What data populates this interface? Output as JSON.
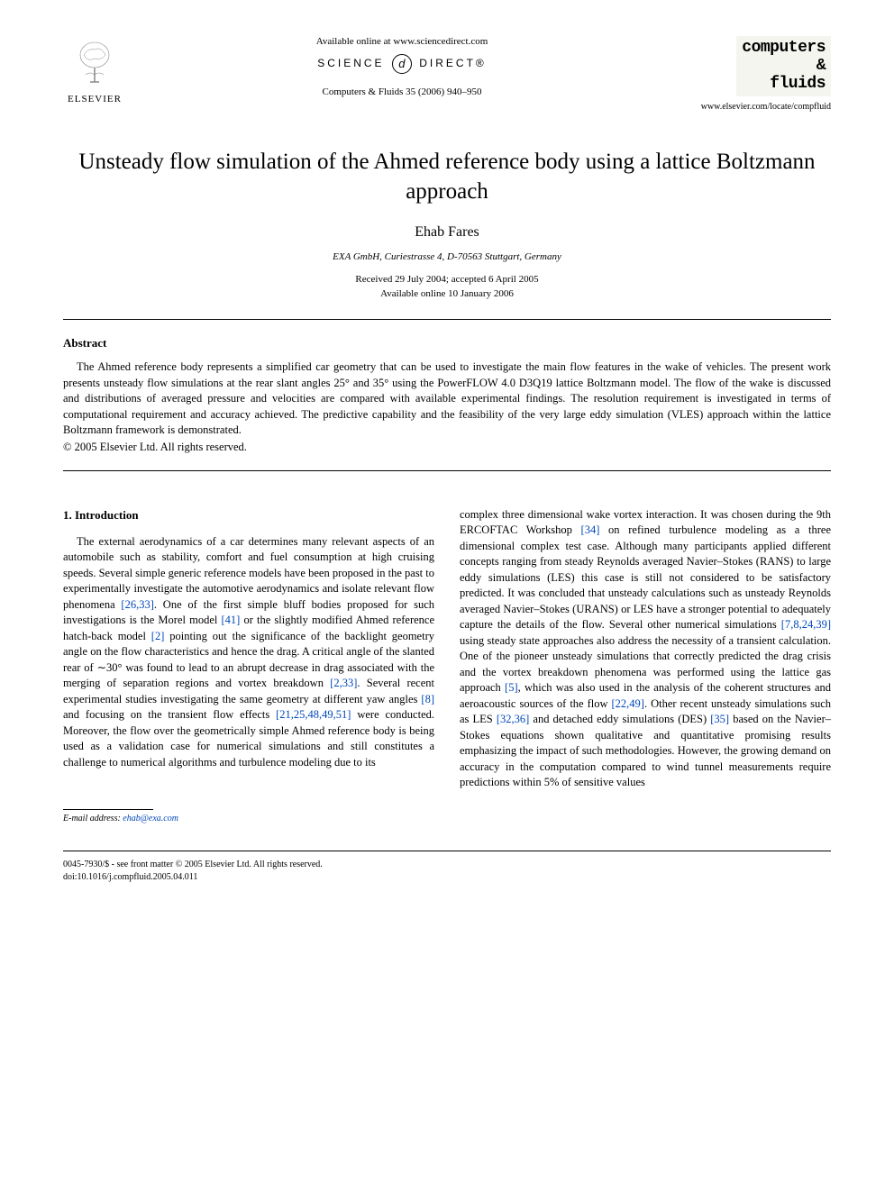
{
  "header": {
    "publisher": "ELSEVIER",
    "available": "Available online at www.sciencedirect.com",
    "sciencedirect_pre": "SCIENCE",
    "sciencedirect_post": "DIRECT®",
    "journal_ref": "Computers & Fluids 35 (2006) 940–950",
    "journal_name_line1": "computers",
    "journal_name_line2": "&",
    "journal_name_line3": "fluids",
    "journal_url": "www.elsevier.com/locate/compfluid"
  },
  "title": "Unsteady flow simulation of the Ahmed reference body using a lattice Boltzmann approach",
  "author": "Ehab Fares",
  "affiliation": "EXA GmbH, Curiestrasse 4, D-70563 Stuttgart, Germany",
  "dates": {
    "received": "Received 29 July 2004; accepted 6 April 2005",
    "online": "Available online 10 January 2006"
  },
  "abstract": {
    "heading": "Abstract",
    "text": "The Ahmed reference body represents a simplified car geometry that can be used to investigate the main flow features in the wake of vehicles. The present work presents unsteady flow simulations at the rear slant angles 25° and 35° using the PowerFLOW 4.0 D3Q19 lattice Boltzmann model. The flow of the wake is discussed and distributions of averaged pressure and velocities are compared with available experimental findings. The resolution requirement is investigated in terms of computational requirement and accuracy achieved. The predictive capability and the feasibility of the very large eddy simulation (VLES) approach within the lattice Boltzmann framework is demonstrated.",
    "copyright": "© 2005 Elsevier Ltd. All rights reserved."
  },
  "section": {
    "heading": "1. Introduction",
    "col1_html": "The external aerodynamics of a car determines many relevant aspects of an automobile such as stability, comfort and fuel consumption at high cruising speeds. Several simple generic reference models have been proposed in the past to experimentally investigate the automotive aerodynamics and isolate relevant flow phenomena <span class='ref-link'>[26,33]</span>. One of the first simple bluff bodies proposed for such investigations is the Morel model <span class='ref-link'>[41]</span> or the slightly modified Ahmed reference hatch-back model <span class='ref-link'>[2]</span> pointing out the significance of the backlight geometry angle on the flow characteristics and hence the drag. A critical angle of the slanted rear of ∼30° was found to lead to an abrupt decrease in drag associated with the merging of separation regions and vortex breakdown <span class='ref-link'>[2,33]</span>. Several recent experimental studies investigating the same geometry at different yaw angles <span class='ref-link'>[8]</span> and focusing on the transient flow effects <span class='ref-link'>[21,25,48,49,51]</span> were conducted. Moreover, the flow over the geometrically simple Ahmed reference body is being used as a validation case for numerical simulations and still constitutes a challenge to numerical algorithms and turbulence modeling due to its",
    "col2_html": "complex three dimensional wake vortex interaction. It was chosen during the 9th ERCOFTAC Workshop <span class='ref-link'>[34]</span> on refined turbulence modeling as a three dimensional complex test case. Although many participants applied different concepts ranging from steady Reynolds averaged Navier–Stokes (RANS) to large eddy simulations (LES) this case is still not considered to be satisfactory predicted. It was concluded that unsteady calculations such as unsteady Reynolds averaged Navier–Stokes (URANS) or LES have a stronger potential to adequately capture the details of the flow. Several other numerical simulations <span class='ref-link'>[7,8,24,39]</span> using steady state approaches also address the necessity of a transient calculation. One of the pioneer unsteady simulations that correctly predicted the drag crisis and the vortex breakdown phenomena was performed using the lattice gas approach <span class='ref-link'>[5]</span>, which was also used in the analysis of the coherent structures and aeroacoustic sources of the flow <span class='ref-link'>[22,49]</span>. Other recent unsteady simulations such as LES <span class='ref-link'>[32,36]</span> and detached eddy simulations (DES) <span class='ref-link'>[35]</span> based on the Navier–Stokes equations shown qualitative and quantitative promising results emphasizing the impact of such methodologies. However, the growing demand on accuracy in the computation compared to wind tunnel measurements require predictions within 5% of sensitive values"
  },
  "footer": {
    "email_label": "E-mail address:",
    "email": "ehab@exa.com",
    "issn": "0045-7930/$ - see front matter © 2005 Elsevier Ltd. All rights reserved.",
    "doi": "doi:10.1016/j.compfluid.2005.04.011"
  },
  "colors": {
    "link": "#0047ba",
    "text": "#000000",
    "background": "#ffffff"
  }
}
